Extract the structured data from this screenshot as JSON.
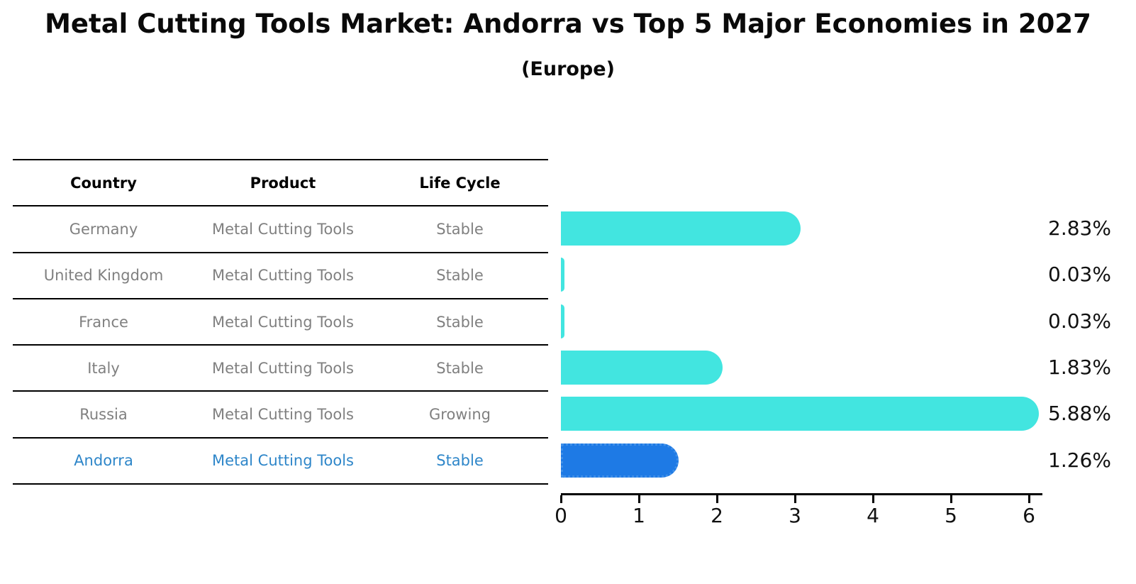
{
  "title": "Metal Cutting Tools Market: Andorra vs Top 5 Major Economies in 2027",
  "subtitle": "(Europe)",
  "table": {
    "headers": [
      "Country",
      "Product",
      "Life Cycle"
    ],
    "rows": [
      {
        "country": "Germany",
        "product": "Metal Cutting Tools",
        "life_cycle": "Stable",
        "highlight": false
      },
      {
        "country": "United Kingdom",
        "product": "Metal Cutting Tools",
        "life_cycle": "Stable",
        "highlight": false
      },
      {
        "country": "France",
        "product": "Metal Cutting Tools",
        "life_cycle": "Stable",
        "highlight": false
      },
      {
        "country": "Italy",
        "product": "Metal Cutting Tools",
        "life_cycle": "Stable",
        "highlight": false
      },
      {
        "country": "Russia",
        "product": "Metal Cutting Tools",
        "life_cycle": "Growing",
        "highlight": false
      },
      {
        "country": "Andorra",
        "product": "Metal Cutting Tools",
        "life_cycle": "Stable",
        "highlight": true
      }
    ]
  },
  "chart_data": {
    "type": "bar",
    "orientation": "horizontal",
    "title": "Metal Cutting Tools Market: Andorra vs Top 5 Major Economies in 2027",
    "subtitle": "(Europe)",
    "categories": [
      "Germany",
      "United Kingdom",
      "France",
      "Italy",
      "Russia",
      "Andorra"
    ],
    "values": [
      2.83,
      0.03,
      0.03,
      1.83,
      5.88,
      1.26
    ],
    "value_labels": [
      "2.83%",
      "0.03%",
      "0.03%",
      "1.83%",
      "5.88%",
      "1.26%"
    ],
    "x_ticks": [
      "0",
      "1",
      "2",
      "3",
      "4",
      "5",
      "6"
    ],
    "xlim": [
      0,
      6.16
    ],
    "xlabel": "",
    "ylabel": "",
    "grid": false,
    "legend": "none",
    "highlight_index": 5,
    "colors": {
      "bar": "#42E5E0",
      "highlight_bar": "#1E7AE5",
      "highlight_border": "#3F8FE8",
      "highlight_text": "#2E86C9",
      "row_text": "#808080",
      "header_text": "#000000",
      "value_text": "#111111",
      "axis": "#000000"
    }
  }
}
